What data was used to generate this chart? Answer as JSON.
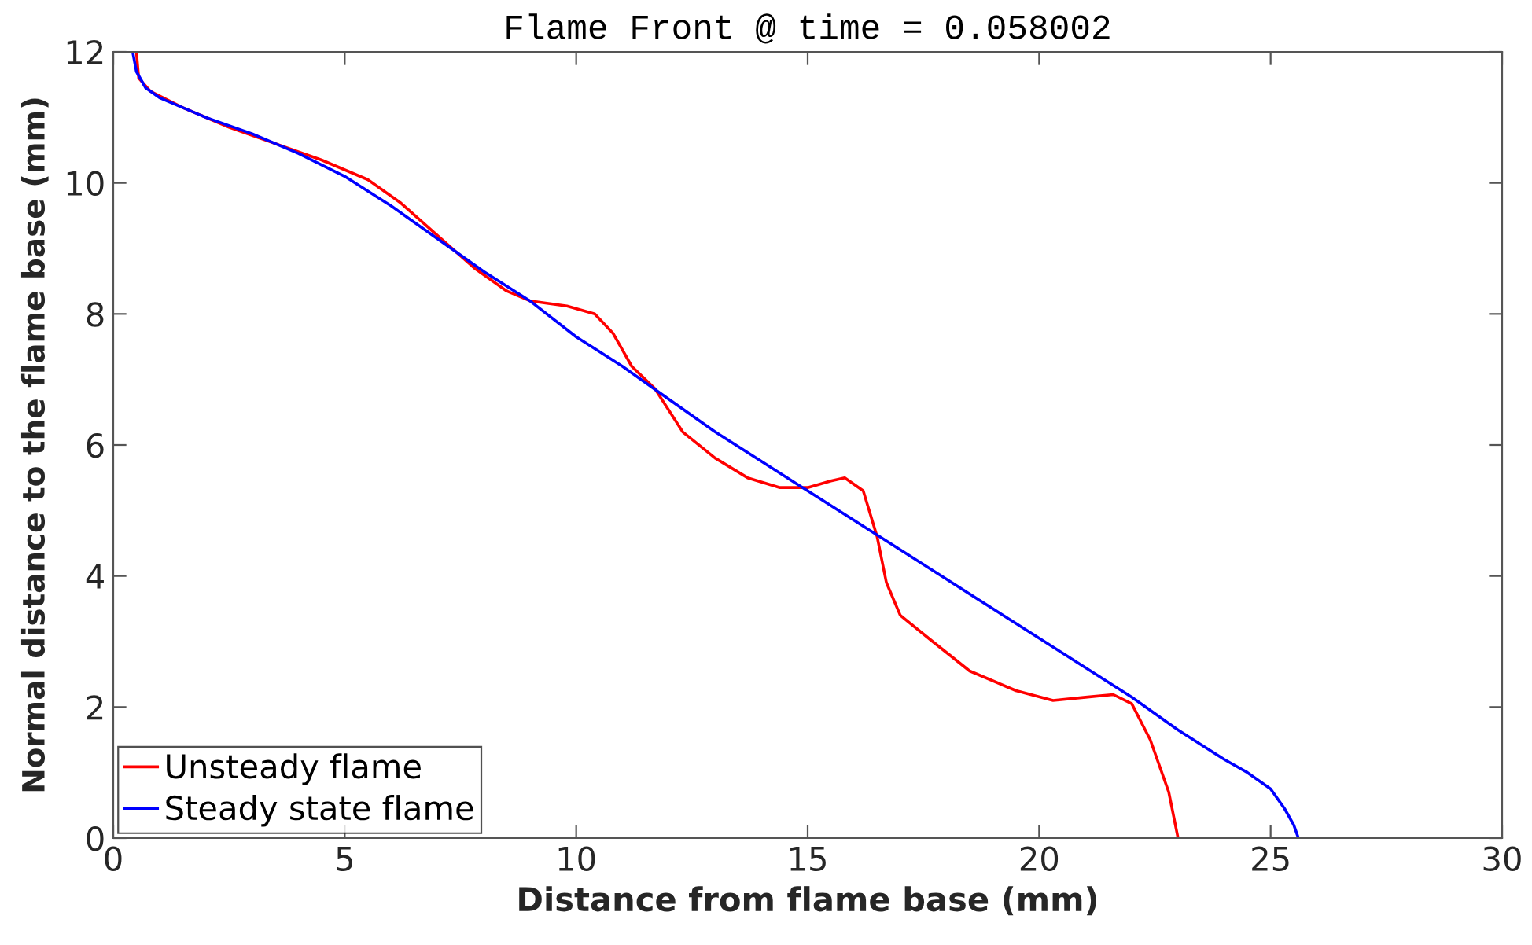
{
  "chart_data": {
    "type": "line",
    "title": "Flame Front @ time = 0.058002",
    "xlabel": "Distance from flame base (mm)",
    "ylabel": "Normal distance to the flame base (mm)",
    "xlim": [
      0,
      30
    ],
    "ylim": [
      0,
      12
    ],
    "xticks": [
      0,
      5,
      10,
      15,
      20,
      25,
      30
    ],
    "yticks": [
      0,
      2,
      4,
      6,
      8,
      10,
      12
    ],
    "grid": false,
    "legend": "bottom left",
    "line_style": "solid",
    "marker": "none",
    "series": [
      {
        "name": "Unsteady flame",
        "color": "#ff0000",
        "x": [
          0.5,
          0.55,
          0.8,
          1.5,
          2.5,
          3.5,
          4.5,
          5.5,
          6.2,
          7,
          7.8,
          8.5,
          9,
          9.8,
          10.4,
          10.8,
          11.2,
          11.7,
          12.3,
          13,
          13.7,
          14.4,
          15,
          15.5,
          15.8,
          16.2,
          16.5,
          16.7,
          17,
          17.7,
          18.5,
          19.5,
          20.3,
          21,
          21.6,
          22,
          22.4,
          22.8,
          23
        ],
        "values": [
          12,
          11.6,
          11.4,
          11.15,
          10.85,
          10.6,
          10.35,
          10.05,
          9.7,
          9.2,
          8.7,
          8.35,
          8.2,
          8.12,
          8.0,
          7.7,
          7.2,
          6.86,
          6.2,
          5.8,
          5.5,
          5.35,
          5.35,
          5.45,
          5.5,
          5.3,
          4.6,
          3.9,
          3.4,
          3.0,
          2.55,
          2.25,
          2.1,
          2.15,
          2.19,
          2.05,
          1.5,
          0.7,
          0
        ]
      },
      {
        "name": "Steady state flame",
        "color": "#0000ff",
        "x": [
          0.42,
          0.5,
          0.7,
          1,
          2,
          3,
          4,
          5,
          6,
          7,
          8,
          9,
          10,
          11,
          12,
          13,
          14,
          15,
          16,
          17,
          18,
          19,
          20,
          21,
          22,
          23,
          24,
          24.5,
          25,
          25.3,
          25.5,
          25.6
        ],
        "values": [
          12,
          11.7,
          11.45,
          11.3,
          11.0,
          10.75,
          10.45,
          10.1,
          9.65,
          9.15,
          8.65,
          8.2,
          7.65,
          7.2,
          6.7,
          6.2,
          5.75,
          5.3,
          4.85,
          4.4,
          3.95,
          3.5,
          3.05,
          2.6,
          2.15,
          1.65,
          1.2,
          1.0,
          0.75,
          0.45,
          0.2,
          0
        ]
      }
    ]
  }
}
